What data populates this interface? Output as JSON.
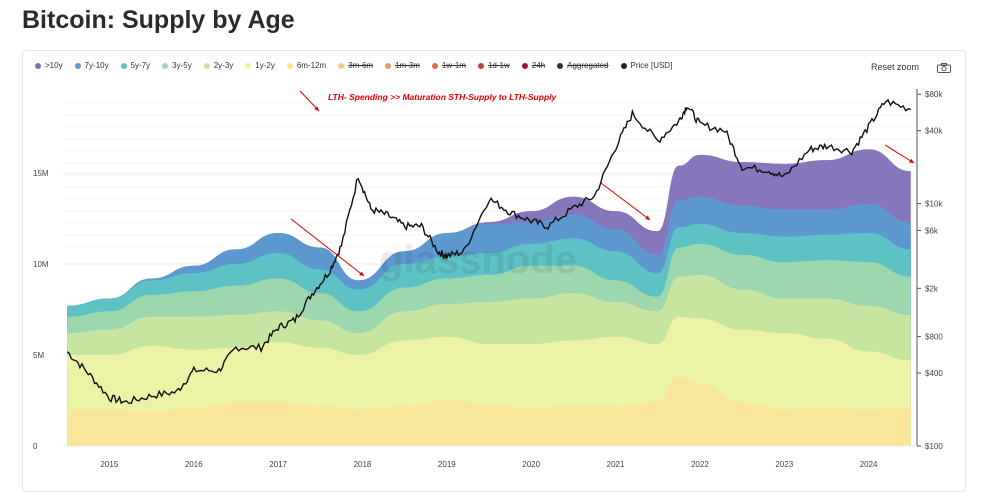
{
  "page": {
    "title": "Bitcoin: Supply by Age"
  },
  "toolbar": {
    "reset_zoom": "Reset zoom"
  },
  "watermark": "glassnode",
  "chart_data": {
    "type": "area",
    "stacked": true,
    "x_labels": [
      "2015",
      "2016",
      "2017",
      "2018",
      "2019",
      "2020",
      "2021",
      "2022",
      "2023",
      "2024"
    ],
    "y_left": {
      "ticks": [
        0,
        5,
        10,
        15
      ],
      "labels": [
        "0",
        "5M",
        "10M",
        "15M"
      ],
      "range": [
        0,
        19.5
      ],
      "unit": "M BTC"
    },
    "y_right": {
      "scale": "log",
      "ticks": [
        100,
        400,
        800,
        2000,
        6000,
        10000,
        40000,
        80000
      ],
      "labels": [
        "$100",
        "$400",
        "$800",
        "$2k",
        "$6k",
        "$10k",
        "$40k",
        "$80k"
      ],
      "range": [
        100,
        85000
      ]
    },
    "legend": [
      {
        "name": ">10y",
        "color": "#8070b8",
        "active": true
      },
      {
        "name": "7y-10y",
        "color": "#5b9bd0",
        "active": true
      },
      {
        "name": "5y-7y",
        "color": "#5ec4c4",
        "active": true
      },
      {
        "name": "3y-5y",
        "color": "#9fd8ac",
        "active": true
      },
      {
        "name": "2y-3y",
        "color": "#c8e6a0",
        "active": true
      },
      {
        "name": "1y-2y",
        "color": "#eef2a6",
        "active": true
      },
      {
        "name": "6m-12m",
        "color": "#fbe59a",
        "active": true
      },
      {
        "name": "3m-6m",
        "color": "#f7c77e",
        "active": false
      },
      {
        "name": "1m-3m",
        "color": "#f09a58",
        "active": false
      },
      {
        "name": "1w-1m",
        "color": "#e06a4a",
        "active": false
      },
      {
        "name": "1d-1w",
        "color": "#cc3b3b",
        "active": false
      },
      {
        "name": "24h",
        "color": "#a01030",
        "active": false
      },
      {
        "name": "Aggregated",
        "color": "#333333",
        "active": false
      },
      {
        "name": "Price [USD]",
        "color": "#222222",
        "active": true
      }
    ],
    "time": [
      2014.5,
      2015.0,
      2015.5,
      2016.0,
      2016.5,
      2017.0,
      2017.5,
      2017.95,
      2018.5,
      2019.0,
      2019.5,
      2020.0,
      2020.5,
      2021.0,
      2021.5,
      2021.75,
      2022.0,
      2022.5,
      2023.0,
      2023.5,
      2024.0,
      2024.5
    ],
    "series": [
      {
        "name": "6m-12m",
        "values": [
          2.0,
          2.0,
          1.9,
          2.1,
          2.4,
          2.4,
          2.2,
          2.0,
          2.2,
          2.5,
          2.3,
          2.1,
          2.2,
          2.2,
          2.4,
          3.8,
          3.4,
          2.4,
          2.0,
          2.1,
          2.0,
          2.1
        ]
      },
      {
        "name": "1y-2y",
        "values": [
          3.0,
          3.0,
          3.6,
          3.2,
          3.0,
          3.3,
          3.2,
          3.0,
          3.6,
          3.5,
          3.3,
          3.5,
          3.6,
          3.8,
          3.2,
          3.3,
          3.6,
          4.0,
          4.2,
          3.8,
          3.2,
          2.6
        ]
      },
      {
        "name": "2y-3y",
        "values": [
          1.2,
          1.4,
          1.6,
          1.8,
          1.8,
          1.7,
          1.5,
          1.2,
          1.6,
          1.8,
          2.3,
          2.5,
          2.6,
          1.9,
          1.8,
          2.2,
          2.4,
          2.2,
          1.9,
          2.2,
          2.5,
          2.5
        ]
      },
      {
        "name": "3y-5y",
        "values": [
          0.9,
          1.0,
          1.2,
          1.4,
          1.6,
          1.8,
          1.5,
          1.2,
          1.3,
          1.4,
          1.5,
          1.8,
          1.5,
          1.2,
          0.8,
          1.6,
          1.7,
          1.9,
          2.0,
          2.1,
          2.4,
          2.1
        ]
      },
      {
        "name": "5y-7y",
        "values": [
          0.6,
          0.7,
          0.8,
          1.0,
          1.2,
          1.4,
          1.3,
          1.2,
          1.3,
          1.2,
          1.2,
          1.2,
          1.5,
          1.6,
          1.3,
          1.1,
          1.1,
          1.2,
          1.4,
          1.4,
          1.6,
          1.5
        ]
      },
      {
        "name": "7y-10y",
        "values": [
          0.0,
          0.0,
          0.1,
          0.4,
          0.8,
          1.1,
          1.2,
          0.5,
          0.7,
          1.3,
          1.6,
          1.2,
          1.3,
          1.2,
          1.0,
          1.5,
          1.5,
          1.5,
          1.5,
          1.4,
          1.6,
          1.5
        ]
      },
      {
        "name": ">10y",
        "values": [
          0.0,
          0.0,
          0.0,
          0.0,
          0.0,
          0.0,
          0.0,
          0.0,
          0.0,
          0.0,
          0.1,
          0.6,
          1.0,
          1.0,
          1.3,
          1.9,
          2.3,
          2.4,
          2.5,
          2.7,
          3.0,
          2.8
        ]
      }
    ],
    "price": {
      "t": [
        2014.5,
        2014.75,
        2015.0,
        2015.2,
        2015.5,
        2015.8,
        2016.0,
        2016.3,
        2016.5,
        2016.8,
        2017.0,
        2017.2,
        2017.4,
        2017.6,
        2017.75,
        2017.95,
        2018.1,
        2018.3,
        2018.5,
        2018.7,
        2018.9,
        2019.0,
        2019.2,
        2019.5,
        2019.75,
        2020.0,
        2020.2,
        2020.5,
        2020.75,
        2021.0,
        2021.2,
        2021.5,
        2021.75,
        2021.85,
        2022.0,
        2022.3,
        2022.5,
        2022.8,
        2023.0,
        2023.3,
        2023.5,
        2023.8,
        2024.0,
        2024.2,
        2024.5
      ],
      "v": [
        600,
        400,
        250,
        230,
        260,
        280,
        420,
        420,
        650,
        650,
        950,
        1100,
        1800,
        2700,
        4500,
        17000,
        9000,
        8000,
        6500,
        6500,
        4000,
        3700,
        4000,
        11000,
        8500,
        7200,
        6500,
        9200,
        11500,
        29000,
        55000,
        33000,
        48000,
        65000,
        45000,
        40000,
        20000,
        19000,
        16500,
        28000,
        30000,
        27000,
        43000,
        70000,
        60000
      ]
    },
    "annotations": [
      {
        "text": "LTH- Spending >> Maturation STH-Supply to LTH-Supply",
        "color": "#e00000"
      }
    ]
  }
}
